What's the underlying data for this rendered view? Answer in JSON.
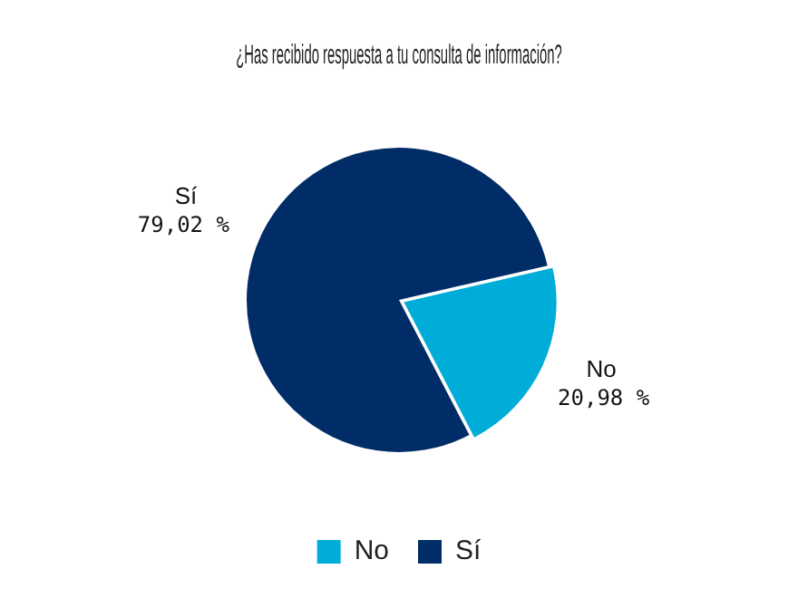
{
  "chart_data": {
    "type": "pie",
    "title": "¿Has recibido respuesta a tu consulta de información?",
    "categories": [
      "No",
      "Sí"
    ],
    "values": [
      20.98,
      79.02
    ],
    "colors": [
      "#00acd8",
      "#002d67"
    ],
    "value_labels": [
      "20,98 %",
      "79,02 %"
    ],
    "legend": "bottom"
  }
}
